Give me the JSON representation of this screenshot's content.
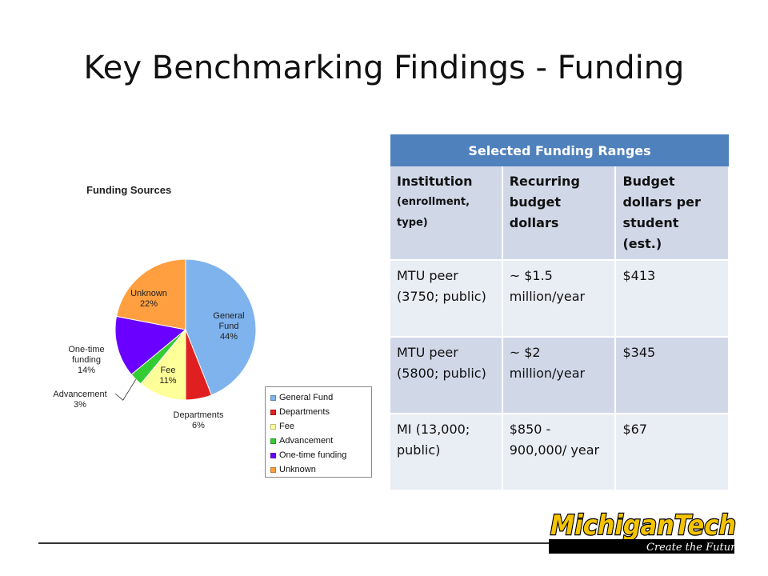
{
  "slide_title": "Key Benchmarking Findings - Funding",
  "chart_data": {
    "type": "pie",
    "title": "Funding Sources",
    "slices": [
      {
        "label": "General Fund",
        "value": 44,
        "color": "#7fb3ee",
        "label_lines": [
          "General",
          "Fund",
          "44%"
        ]
      },
      {
        "label": "Departments",
        "value": 6,
        "color": "#e02020",
        "label_lines": [
          "Departments",
          "6%"
        ]
      },
      {
        "label": "Fee",
        "value": 11,
        "color": "#ffff99",
        "label_lines": [
          "Fee",
          "11%"
        ]
      },
      {
        "label": "Advancement",
        "value": 3,
        "color": "#33cc33",
        "label_lines": [
          "Advancement",
          "3%"
        ]
      },
      {
        "label": "One-time funding",
        "value": 14,
        "color": "#6a00ff",
        "label_lines": [
          "One-time",
          "funding",
          "14%"
        ]
      },
      {
        "label": "Unknown",
        "value": 22,
        "color": "#ff9f40",
        "label_lines": [
          "Unknown",
          "22%"
        ]
      }
    ],
    "legend_position": "bottom-right"
  },
  "table": {
    "caption": "Selected Funding Ranges",
    "headers": {
      "institution": "Institution",
      "institution_sub": "(enrollment, type)",
      "recurring": "Recurring budget dollars",
      "per_student": "Budget dollars per student (est.)"
    },
    "rows": [
      {
        "institution": "MTU peer (3750; public)",
        "recurring": "~ $1.5 million/year",
        "per_student": "$413"
      },
      {
        "institution": "MTU peer (5800; public)",
        "recurring": "~ $2 million/year",
        "per_student": "$345"
      },
      {
        "institution": "MI (13,000; public)",
        "recurring": "$850 - 900,000/ year",
        "per_student": "$67"
      }
    ]
  },
  "logo": {
    "name": "MichiganTech",
    "tagline": "Create the Future"
  }
}
